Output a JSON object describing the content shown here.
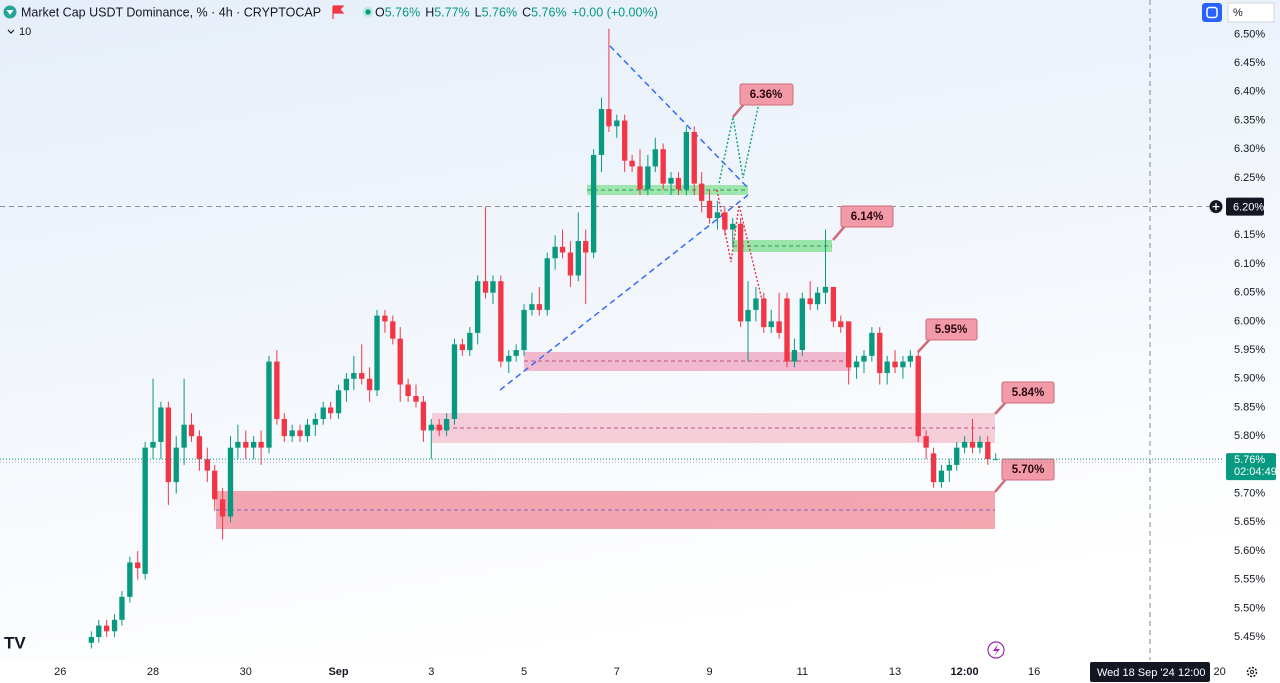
{
  "header": {
    "symbol": "Market Cap USDT Dominance, % · 4h · CRYPTOCAP",
    "ohlc": [
      {
        "key": "O",
        "value": "5.76%"
      },
      {
        "key": "H",
        "value": "5.77%"
      },
      {
        "key": "L",
        "value": "5.76%"
      },
      {
        "key": "C",
        "value": "5.76%"
      }
    ],
    "change": "+0.00 (+0.00%)",
    "indicators": "10",
    "scale_mode": "%"
  },
  "crosshair": {
    "price": {
      "value": 6.2,
      "label": "6.20%"
    },
    "date": "Wed 18 Sep '24",
    "time": "12:00"
  },
  "last_price": {
    "value": 5.76,
    "label": "5.76%",
    "countdown": "02:04:49"
  },
  "chart_data": {
    "type": "candlestick",
    "up_color": "#089981",
    "down_color": "#f23645",
    "xlim": [
      -1.3,
      25.05
    ],
    "ylim": [
      5.41,
      6.56
    ],
    "xticks": [
      {
        "value": 0,
        "label": "26"
      },
      {
        "value": 2,
        "label": "28"
      },
      {
        "value": 4,
        "label": "30"
      },
      {
        "value": 6,
        "label": "Sep"
      },
      {
        "value": 8,
        "label": "3"
      },
      {
        "value": 10,
        "label": "5"
      },
      {
        "value": 12,
        "label": "7"
      },
      {
        "value": 14,
        "label": "9"
      },
      {
        "value": 16,
        "label": "11"
      },
      {
        "value": 18,
        "label": "13"
      },
      {
        "value": 19.5,
        "label": "12:00"
      },
      {
        "value": 21,
        "label": "16"
      },
      {
        "value": 25,
        "label": "20"
      }
    ],
    "yticks": [
      {
        "value": 6.5,
        "label": "6.50%"
      },
      {
        "value": 6.45,
        "label": "6.45%"
      },
      {
        "value": 6.4,
        "label": "6.40%"
      },
      {
        "value": 6.35,
        "label": "6.35%"
      },
      {
        "value": 6.3,
        "label": "6.30%"
      },
      {
        "value": 6.25,
        "label": "6.25%"
      },
      {
        "value": 6.15,
        "label": "6.15%"
      },
      {
        "value": 6.1,
        "label": "6.10%"
      },
      {
        "value": 6.05,
        "label": "6.05%"
      },
      {
        "value": 6.0,
        "label": "6.00%"
      },
      {
        "value": 5.95,
        "label": "5.95%"
      },
      {
        "value": 5.9,
        "label": "5.90%"
      },
      {
        "value": 5.85,
        "label": "5.85%"
      },
      {
        "value": 5.8,
        "label": "5.80%"
      },
      {
        "value": 5.7,
        "label": "5.70%"
      },
      {
        "value": 5.65,
        "label": "5.65%"
      },
      {
        "value": 5.6,
        "label": "5.60%"
      },
      {
        "value": 5.55,
        "label": "5.55%"
      },
      {
        "value": 5.5,
        "label": "5.50%"
      },
      {
        "value": 5.45,
        "label": "5.45%"
      }
    ],
    "annotations": [
      "6.36%",
      "6.14%",
      "5.95%",
      "5.84%",
      "5.70%"
    ],
    "x": [
      0.67,
      0.83,
      1,
      1.17,
      1.33,
      1.5,
      1.67,
      1.83,
      2,
      2.17,
      2.33,
      2.5,
      2.67,
      2.83,
      3,
      3.17,
      3.33,
      3.5,
      3.67,
      3.83,
      4,
      4.17,
      4.33,
      4.5,
      4.67,
      4.83,
      5,
      5.17,
      5.33,
      5.5,
      5.67,
      5.83,
      6,
      6.17,
      6.33,
      6.5,
      6.67,
      6.83,
      7,
      7.17,
      7.33,
      7.5,
      7.67,
      7.83,
      8,
      8.17,
      8.33,
      8.5,
      8.67,
      8.83,
      9,
      9.17,
      9.33,
      9.5,
      9.67,
      9.83,
      10,
      10.17,
      10.33,
      10.5,
      10.67,
      10.83,
      11,
      11.17,
      11.33,
      11.5,
      11.67,
      11.83,
      12,
      12.17,
      12.33,
      12.5,
      12.67,
      12.83,
      13,
      13.17,
      13.33,
      13.5,
      13.67,
      13.83,
      14,
      14.17,
      14.33,
      14.5,
      14.67,
      14.83,
      15,
      15.17,
      15.33,
      15.5,
      15.67,
      15.83,
      16,
      16.17,
      16.33,
      16.5,
      16.67,
      16.83,
      17,
      17.17,
      17.33,
      17.5,
      17.67,
      17.83,
      18,
      18.17,
      18.33,
      18.5,
      18.67,
      18.83,
      19,
      19.17,
      19.33,
      19.5,
      19.67,
      19.83,
      20,
      20.17
    ],
    "open": [
      5.44,
      5.45,
      5.47,
      5.46,
      5.48,
      5.52,
      5.58,
      5.56,
      5.78,
      5.79,
      5.85,
      5.72,
      5.78,
      5.82,
      5.8,
      5.76,
      5.74,
      5.69,
      5.66,
      5.78,
      5.79,
      5.78,
      5.79,
      5.78,
      5.93,
      5.83,
      5.8,
      5.81,
      5.8,
      5.82,
      5.83,
      5.85,
      5.84,
      5.88,
      5.9,
      5.91,
      5.9,
      5.88,
      6.01,
      6.0,
      5.97,
      5.89,
      5.87,
      5.86,
      5.81,
      5.82,
      5.81,
      5.83,
      5.96,
      5.95,
      5.98,
      6.07,
      6.05,
      6.07,
      5.93,
      5.94,
      5.95,
      6.02,
      6.03,
      6.02,
      6.11,
      6.13,
      6.12,
      6.08,
      6.14,
      6.12,
      6.29,
      6.37,
      6.34,
      6.35,
      6.28,
      6.27,
      6.23,
      6.27,
      6.3,
      6.24,
      6.25,
      6.23,
      6.33,
      6.24,
      6.21,
      6.18,
      6.19,
      6.16,
      6.17,
      6.0,
      6.02,
      6.04,
      5.99,
      6.0,
      6.04,
      5.93,
      5.95,
      6.04,
      6.03,
      6.05,
      6.06,
      6.0,
      6.0,
      5.92,
      5.93,
      5.94,
      5.98,
      5.91,
      5.93,
      5.92,
      5.93,
      5.94,
      5.8,
      5.77,
      5.72,
      5.74,
      5.75,
      5.78,
      5.79,
      5.78,
      5.79,
      5.76
    ],
    "high": [
      5.46,
      5.48,
      5.48,
      5.49,
      5.53,
      5.59,
      5.6,
      5.79,
      5.9,
      5.86,
      5.86,
      5.8,
      5.9,
      5.84,
      5.81,
      5.78,
      5.75,
      5.71,
      5.8,
      5.82,
      5.81,
      5.8,
      5.81,
      5.94,
      5.95,
      5.84,
      5.82,
      5.82,
      5.83,
      5.84,
      5.86,
      5.86,
      5.89,
      5.91,
      5.94,
      5.96,
      5.92,
      6.02,
      6.02,
      6.01,
      5.99,
      5.9,
      5.89,
      5.87,
      5.83,
      5.83,
      5.84,
      5.97,
      5.97,
      5.99,
      6.08,
      6.2,
      6.08,
      6.08,
      5.95,
      5.96,
      6.03,
      6.05,
      6.06,
      6.12,
      6.15,
      6.16,
      6.14,
      6.19,
      6.16,
      6.3,
      6.39,
      6.51,
      6.36,
      6.36,
      6.29,
      6.3,
      6.29,
      6.32,
      6.31,
      6.26,
      6.26,
      6.34,
      6.34,
      6.26,
      6.23,
      6.21,
      6.2,
      6.18,
      6.18,
      6.07,
      6.06,
      6.05,
      6.02,
      6.05,
      6.05,
      5.97,
      6.05,
      6.07,
      6.06,
      6.16,
      6.06,
      6.01,
      6.0,
      5.94,
      5.95,
      5.99,
      5.99,
      5.94,
      5.95,
      5.94,
      5.95,
      5.95,
      5.81,
      5.78,
      5.75,
      5.76,
      5.79,
      5.8,
      5.83,
      5.8,
      5.8,
      5.77
    ],
    "low": [
      5.43,
      5.44,
      5.45,
      5.45,
      5.47,
      5.51,
      5.55,
      5.55,
      5.76,
      5.76,
      5.68,
      5.7,
      5.75,
      5.79,
      5.74,
      5.72,
      5.67,
      5.62,
      5.65,
      5.76,
      5.76,
      5.76,
      5.75,
      5.77,
      5.82,
      5.79,
      5.79,
      5.79,
      5.79,
      5.8,
      5.82,
      5.83,
      5.83,
      5.86,
      5.88,
      5.89,
      5.86,
      5.87,
      5.98,
      5.96,
      5.86,
      5.86,
      5.85,
      5.79,
      5.76,
      5.8,
      5.8,
      5.82,
      5.94,
      5.94,
      5.96,
      6.04,
      6.03,
      5.92,
      5.91,
      5.93,
      5.94,
      6.01,
      6.01,
      6.01,
      6.09,
      6.11,
      6.06,
      6.07,
      6.03,
      6.11,
      6.26,
      6.33,
      6.32,
      6.26,
      6.26,
      6.22,
      6.22,
      6.26,
      6.23,
      6.22,
      6.22,
      6.22,
      6.22,
      6.19,
      6.17,
      6.16,
      6.15,
      6.13,
      5.99,
      5.93,
      6.0,
      5.98,
      5.98,
      5.97,
      5.92,
      5.92,
      5.94,
      6.02,
      6.02,
      6.03,
      5.99,
      5.98,
      5.89,
      5.9,
      5.91,
      5.93,
      5.89,
      5.89,
      5.91,
      5.9,
      5.92,
      5.79,
      5.76,
      5.71,
      5.71,
      5.72,
      5.74,
      5.77,
      5.77,
      5.77,
      5.75,
      5.76
    ],
    "close": [
      5.45,
      5.47,
      5.46,
      5.48,
      5.52,
      5.58,
      5.57,
      5.78,
      5.79,
      5.85,
      5.72,
      5.78,
      5.82,
      5.8,
      5.76,
      5.74,
      5.69,
      5.66,
      5.78,
      5.79,
      5.78,
      5.79,
      5.78,
      5.93,
      5.83,
      5.8,
      5.81,
      5.8,
      5.82,
      5.83,
      5.85,
      5.84,
      5.88,
      5.9,
      5.91,
      5.9,
      5.88,
      6.01,
      6.0,
      5.97,
      5.89,
      5.87,
      5.86,
      5.81,
      5.82,
      5.81,
      5.83,
      5.96,
      5.95,
      5.98,
      6.07,
      6.05,
      6.07,
      5.93,
      5.94,
      5.95,
      6.02,
      6.03,
      6.02,
      6.11,
      6.13,
      6.12,
      6.08,
      6.14,
      6.12,
      6.29,
      6.37,
      6.34,
      6.35,
      6.28,
      6.27,
      6.23,
      6.27,
      6.3,
      6.24,
      6.25,
      6.23,
      6.33,
      6.24,
      6.21,
      6.18,
      6.19,
      6.16,
      6.17,
      6.0,
      6.02,
      6.04,
      5.99,
      6.0,
      5.98,
      5.93,
      5.95,
      6.04,
      6.03,
      6.05,
      6.06,
      6.0,
      5.99,
      5.92,
      5.93,
      5.94,
      5.98,
      5.91,
      5.93,
      5.92,
      5.93,
      5.94,
      5.8,
      5.78,
      5.72,
      5.74,
      5.75,
      5.78,
      5.79,
      5.78,
      5.79,
      5.76,
      5.76
    ]
  }
}
